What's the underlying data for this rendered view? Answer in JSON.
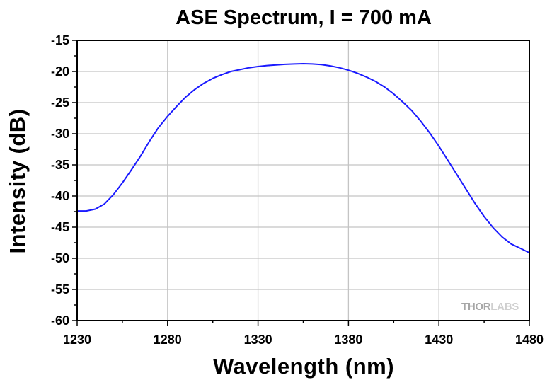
{
  "chart_data": {
    "type": "line",
    "title": "ASE Spectrum, I = 700 mA",
    "xlabel": "Wavelength (nm)",
    "ylabel": "Intensity (dB)",
    "xlim": [
      1230,
      1480
    ],
    "ylim": [
      -60,
      -15
    ],
    "x_ticks": [
      1230,
      1280,
      1330,
      1380,
      1430,
      1480
    ],
    "y_ticks": [
      -15,
      -20,
      -25,
      -30,
      -35,
      -40,
      -45,
      -50,
      -55,
      -60
    ],
    "grid": true,
    "line_color": "#1a1aff",
    "series": [
      {
        "x": [
          1230,
          1235,
          1240,
          1245,
          1250,
          1255,
          1260,
          1265,
          1270,
          1275,
          1280,
          1285,
          1290,
          1295,
          1300,
          1305,
          1310,
          1315,
          1320,
          1325,
          1330,
          1335,
          1340,
          1345,
          1350,
          1355,
          1360,
          1365,
          1370,
          1375,
          1380,
          1385,
          1390,
          1395,
          1400,
          1405,
          1410,
          1415,
          1420,
          1425,
          1430,
          1435,
          1440,
          1445,
          1450,
          1455,
          1460,
          1465,
          1470,
          1475,
          1480
        ],
        "y": [
          -42.4,
          -42.4,
          -42.1,
          -41.3,
          -39.8,
          -37.9,
          -35.8,
          -33.6,
          -31.2,
          -29.0,
          -27.2,
          -25.6,
          -24.1,
          -22.9,
          -21.9,
          -21.1,
          -20.5,
          -20.0,
          -19.7,
          -19.4,
          -19.2,
          -19.05,
          -18.95,
          -18.85,
          -18.8,
          -18.75,
          -18.8,
          -18.9,
          -19.1,
          -19.4,
          -19.8,
          -20.3,
          -20.9,
          -21.6,
          -22.5,
          -23.6,
          -24.9,
          -26.3,
          -28.0,
          -29.9,
          -32.0,
          -34.3,
          -36.6,
          -38.9,
          -41.2,
          -43.3,
          -45.1,
          -46.6,
          -47.7,
          -48.4,
          -49.1
        ]
      }
    ],
    "watermark": {
      "part1": "THOR",
      "part2": "LABS",
      "color1": "#a7a7a7",
      "color2": "#cfcfcf"
    }
  }
}
